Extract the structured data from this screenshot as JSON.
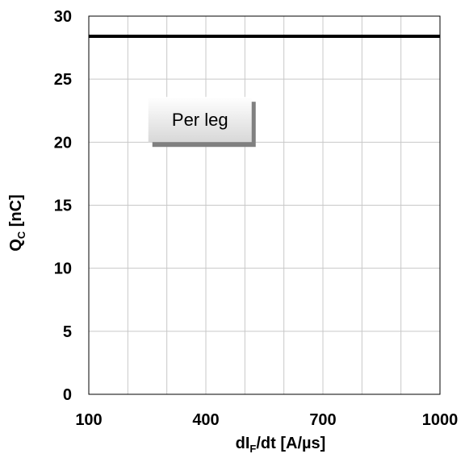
{
  "chart_data": {
    "type": "line",
    "title": "",
    "xlabel": {
      "main": "dI",
      "sub": "F",
      "rest": "/dt  [A/µs]"
    },
    "ylabel": {
      "main": "Q",
      "sub": "C",
      "rest": "  [nC]"
    },
    "xlim": [
      100,
      1000
    ],
    "ylim": [
      0,
      30
    ],
    "x_ticks": [
      100,
      400,
      700,
      1000
    ],
    "x_tick_labels": [
      "100",
      "400",
      "700",
      "1000"
    ],
    "x_grid_step": 100,
    "y_ticks": [
      0,
      5,
      10,
      15,
      20,
      25,
      30
    ],
    "y_tick_labels": [
      "0",
      "5",
      "10",
      "15",
      "20",
      "25",
      "30"
    ],
    "grid": true,
    "series": [
      {
        "x": [
          100,
          1000
        ],
        "y": [
          28.4,
          28.4
        ],
        "color": "#000000"
      }
    ],
    "annotations": [
      {
        "text": "Per leg",
        "x": 385,
        "y": 21.8
      }
    ]
  }
}
